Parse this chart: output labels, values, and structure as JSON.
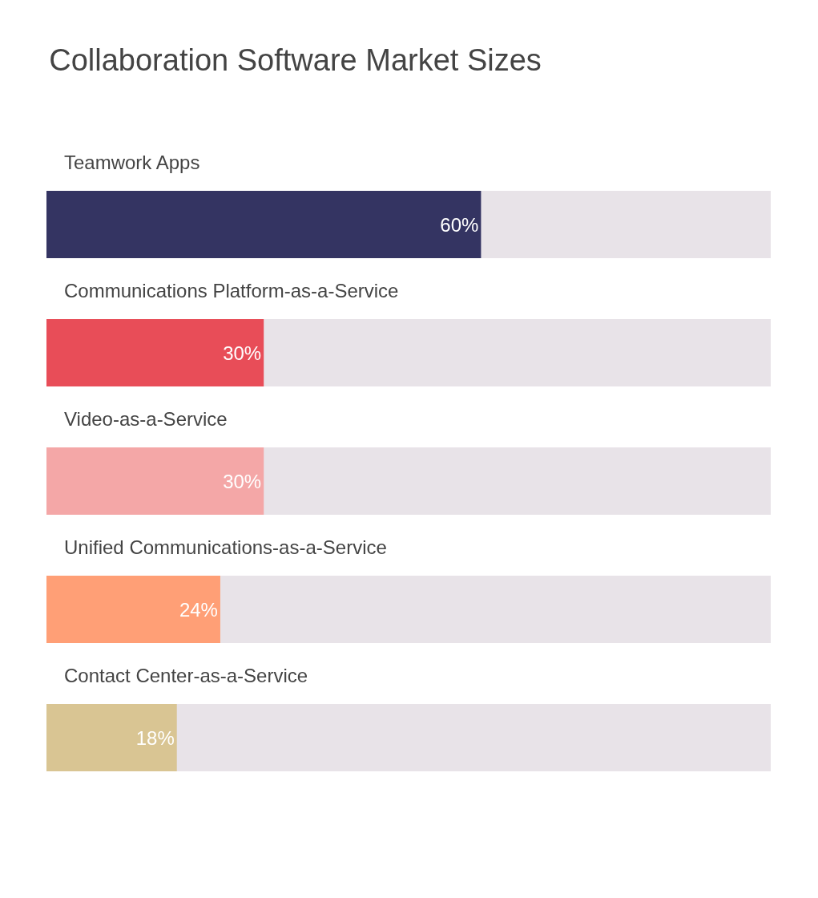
{
  "chart_data": {
    "type": "bar",
    "orientation": "horizontal",
    "title": "Collaboration Software Market Sizes",
    "categories": [
      "Teamwork Apps",
      "Communications Platform-as-a-Service",
      "Video-as-a-Service",
      "Unified Communications-as-a-Service",
      "Contact Center-as-a-Service"
    ],
    "values": [
      60,
      30,
      30,
      24,
      18
    ],
    "value_labels": [
      "60%",
      "30%",
      "30%",
      "24%",
      "18%"
    ],
    "colors": [
      "#343462",
      "#e84d58",
      "#f4a7a7",
      "#ff9f76",
      "#d9c593"
    ],
    "xlim": [
      0,
      100
    ],
    "tick_labels": false,
    "grid": false,
    "legend": false
  }
}
